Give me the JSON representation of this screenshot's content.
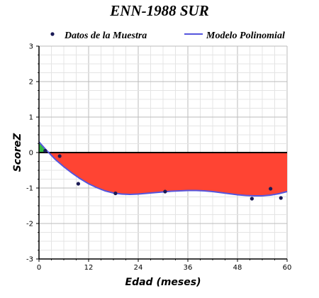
{
  "chart_data": {
    "type": "area",
    "title": "ENN-1988 SUR",
    "xlabel": "Edad (meses)",
    "ylabel": "ScoreZ",
    "xlim": [
      0,
      60
    ],
    "ylim": [
      -3,
      3
    ],
    "xticks": [
      0,
      12,
      24,
      36,
      48,
      60
    ],
    "yticks": [
      -3,
      -2,
      -1,
      0,
      1,
      2,
      3
    ],
    "grid": true,
    "legend_position": "top",
    "colors": {
      "model_line": "#5555dd",
      "area_negative": "#ff4433",
      "area_positive": "#33bb44",
      "points": "#1a1a55",
      "grid": "#cccccc",
      "zero_line": "#000000"
    },
    "series": [
      {
        "name": "Datos de la Muestra",
        "type": "scatter",
        "x": [
          1.5,
          5,
          9.5,
          18.5,
          30.5,
          51.5,
          56,
          58.5
        ],
        "y": [
          0.05,
          -0.1,
          -0.88,
          -1.15,
          -1.1,
          -1.3,
          -1.02,
          -1.28
        ]
      },
      {
        "name": "Modelo Polinomial",
        "type": "line",
        "x": [
          0,
          2,
          4,
          6,
          8,
          10,
          12,
          14,
          16,
          18,
          20,
          22,
          24,
          26,
          28,
          30,
          32,
          34,
          36,
          38,
          40,
          42,
          44,
          46,
          48,
          50,
          52,
          54,
          56,
          58,
          60
        ],
        "y": [
          0.3,
          0.04,
          -0.2,
          -0.4,
          -0.58,
          -0.74,
          -0.88,
          -0.99,
          -1.08,
          -1.14,
          -1.17,
          -1.18,
          -1.17,
          -1.15,
          -1.13,
          -1.11,
          -1.09,
          -1.08,
          -1.07,
          -1.07,
          -1.08,
          -1.1,
          -1.13,
          -1.16,
          -1.19,
          -1.21,
          -1.22,
          -1.22,
          -1.2,
          -1.16,
          -1.1
        ]
      }
    ]
  }
}
